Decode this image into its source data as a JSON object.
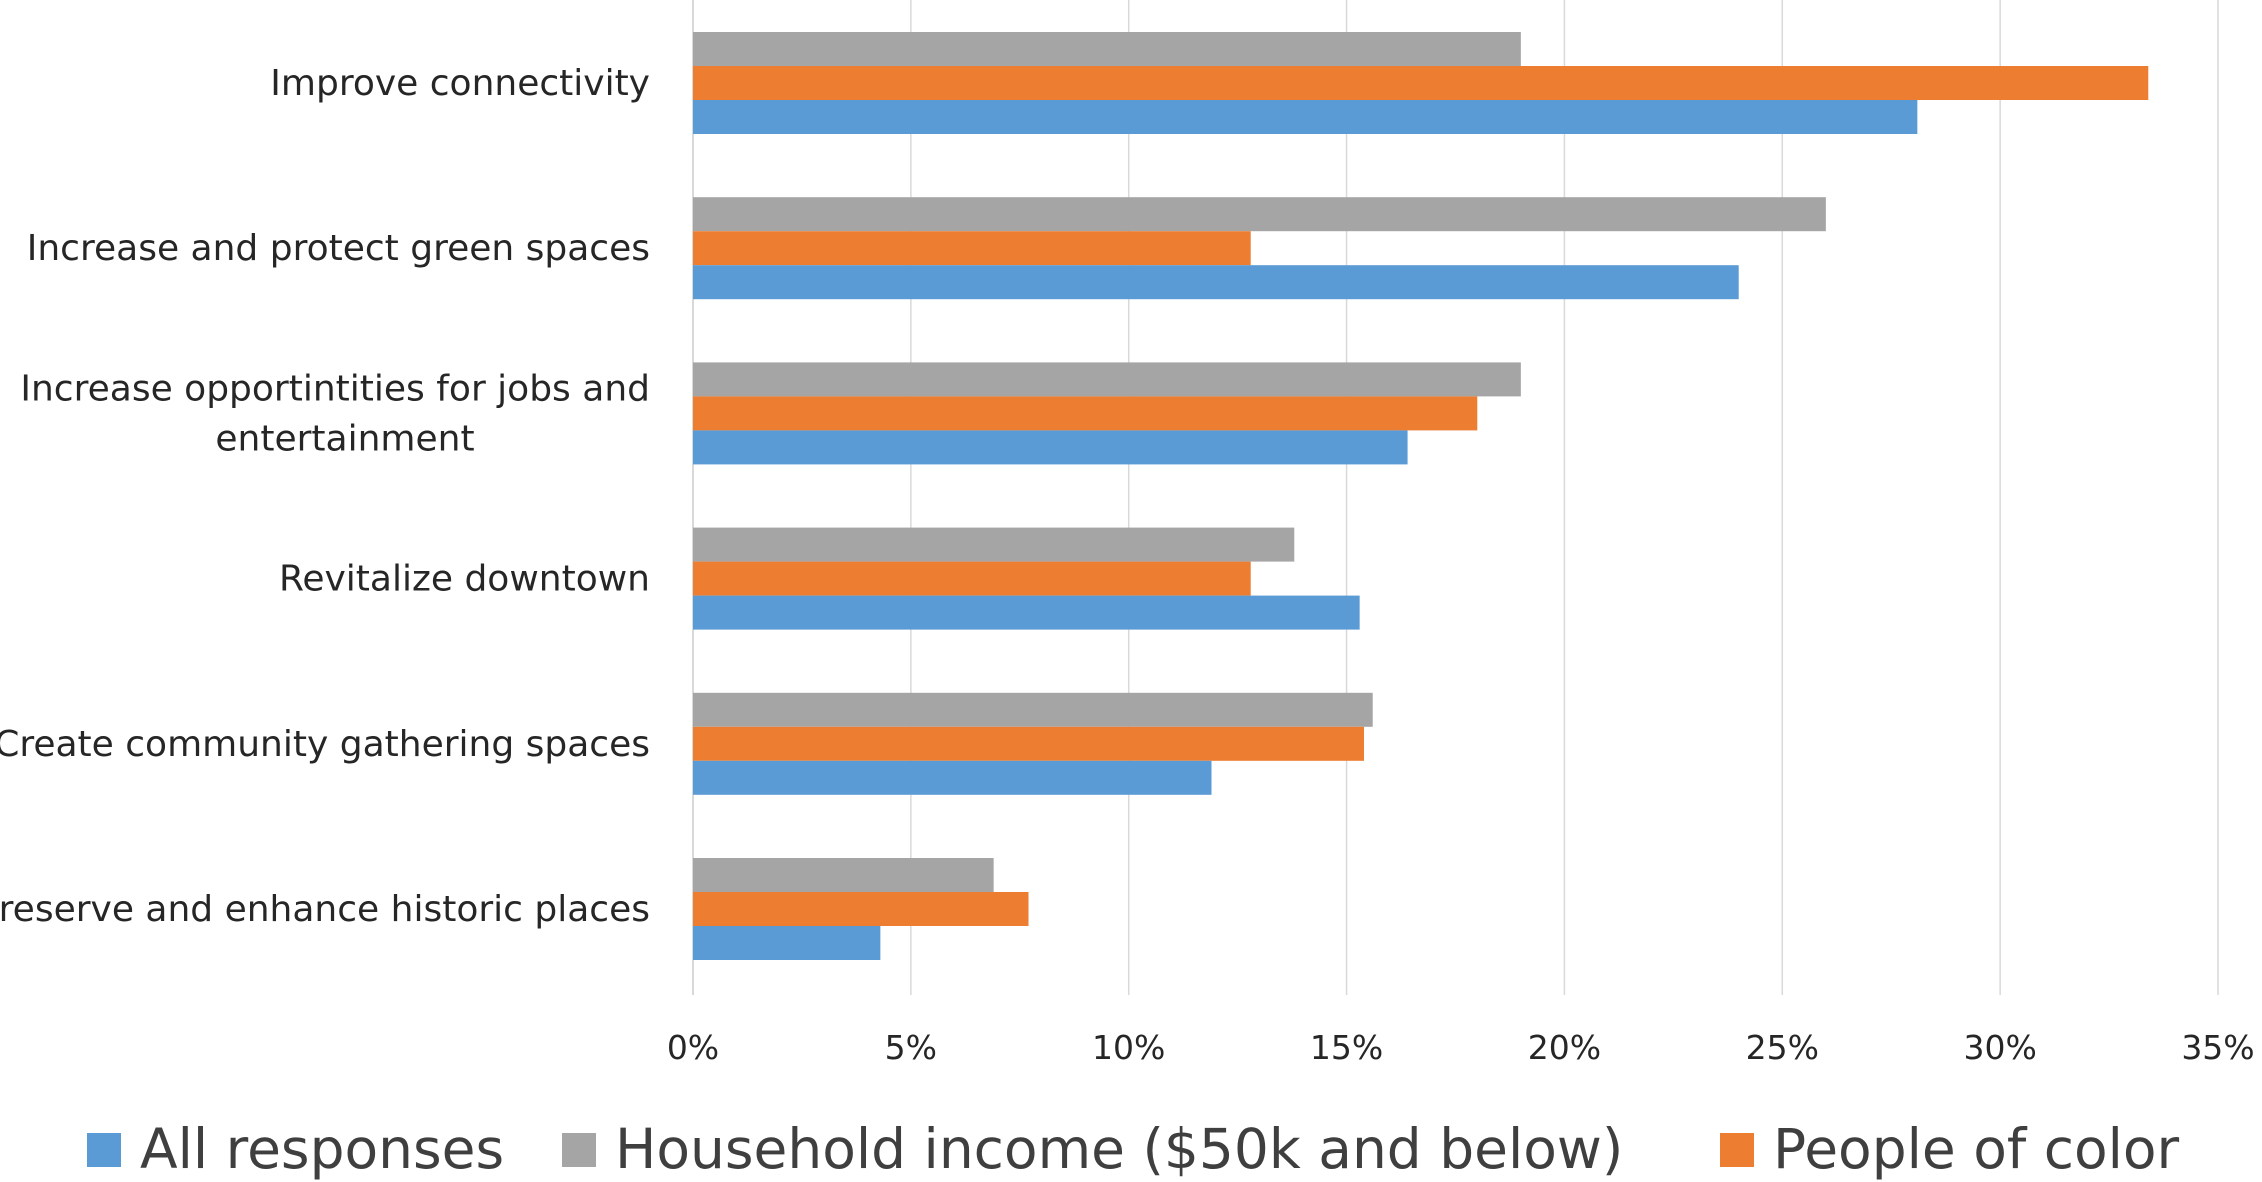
{
  "chart_data": {
    "type": "bar",
    "orientation": "horizontal",
    "categories": [
      [
        "Improve connectivity"
      ],
      [
        "Increase and protect green spaces"
      ],
      [
        "Increase opportintities for jobs and",
        "entertainment"
      ],
      [
        "Revitalize downtown"
      ],
      [
        "Create community gathering spaces"
      ],
      [
        "Preserve and enhance historic places"
      ]
    ],
    "series": [
      {
        "name": "Household income ($50k and below)",
        "color": "#a5a5a5",
        "values": [
          0.19,
          0.26,
          0.19,
          0.138,
          0.156,
          0.069
        ]
      },
      {
        "name": "People of color",
        "color": "#ed7d31",
        "values": [
          0.334,
          0.128,
          0.18,
          0.128,
          0.154,
          0.077
        ]
      },
      {
        "name": "All responses",
        "color": "#5b9bd5",
        "values": [
          0.281,
          0.24,
          0.164,
          0.153,
          0.119,
          0.043
        ]
      }
    ],
    "xlim": [
      0,
      0.35
    ],
    "xticks": [
      0,
      0.05,
      0.1,
      0.15,
      0.2,
      0.25,
      0.3,
      0.35
    ],
    "xtick_labels": [
      "0%",
      "5%",
      "10%",
      "15%",
      "20%",
      "25%",
      "30%",
      "35%"
    ],
    "grid": true,
    "legend": {
      "position": "bottom",
      "entries": [
        {
          "name": "All responses",
          "color": "#5b9bd5"
        },
        {
          "name": "Household income ($50k and below)",
          "color": "#a5a5a5"
        },
        {
          "name": "People of color",
          "color": "#ed7d31"
        }
      ]
    }
  }
}
